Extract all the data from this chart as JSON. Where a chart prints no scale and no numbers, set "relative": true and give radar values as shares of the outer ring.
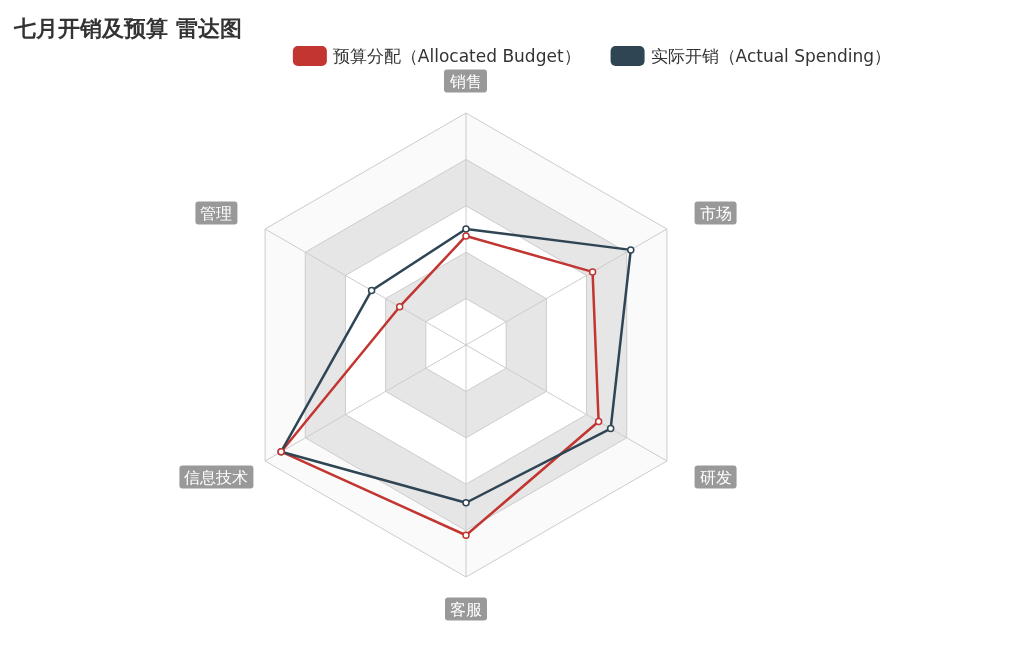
{
  "chart_data": {
    "type": "radar",
    "title": "七月开销及预算 雷达图",
    "categories": [
      "销售",
      "市场",
      "研发",
      "客服",
      "信息技术",
      "管理"
    ],
    "relative": true,
    "legend": "top",
    "marker": "circle",
    "grid": true,
    "series": [
      {
        "name": "预算分配（Allocated Budget）",
        "color": "#c23531",
        "values": [
          0.47,
          0.63,
          0.66,
          0.82,
          0.92,
          0.33
        ]
      },
      {
        "name": "实际开销（Actual Spending）",
        "color": "#2f4554",
        "values": [
          0.5,
          0.82,
          0.72,
          0.68,
          0.92,
          0.47
        ]
      }
    ]
  }
}
